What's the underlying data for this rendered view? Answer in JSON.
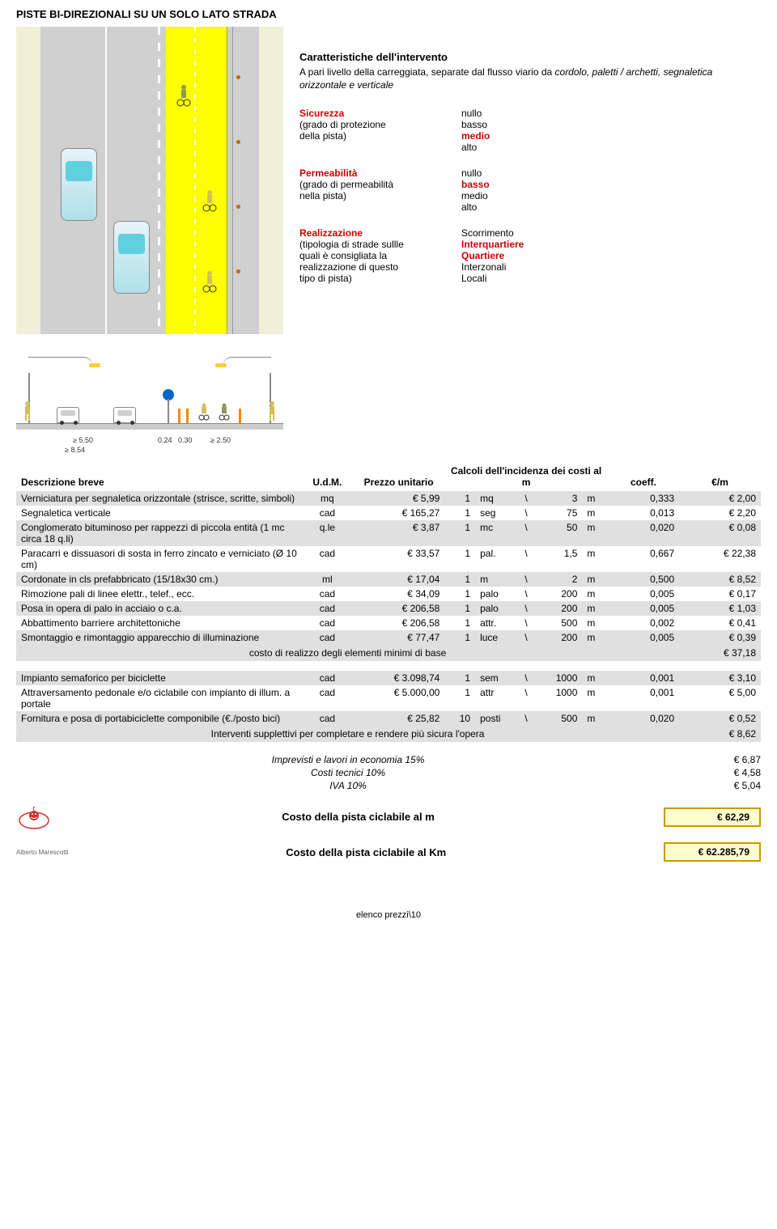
{
  "title": "PISTE BI-DIREZIONALI SU UN SOLO LATO STRADA",
  "intervention": {
    "heading": "Caratteristiche dell'intervento",
    "text_plain": "A pari livello della carreggiata, separate dal flusso viario da ",
    "text_italic": "cordolo, paletti / archetti, segnaletica orizzontale e verticale"
  },
  "sicurezza": {
    "label": "Sicurezza",
    "sub1": "(grado di protezione",
    "sub2": "della pista)",
    "opts": [
      "nullo",
      "basso",
      "medio",
      "alto"
    ],
    "selected": 2
  },
  "permeabilita": {
    "label": "Permeabilità",
    "sub1": "(grado di permeabilità",
    "sub2": "nella pista)",
    "opts": [
      "nullo",
      "basso",
      "medio",
      "alto"
    ],
    "selected": 1
  },
  "realizzazione": {
    "label": "Realizzazione",
    "sub1": "(tipologia di strade sullle",
    "sub2": "quali è consigliata  la",
    "sub3": "realizzazione di questo",
    "sub4": "tipo di pista)",
    "opts": [
      "Scorrimento",
      "Interquartiere",
      "Quartiere",
      "Interzonali",
      "Locali"
    ],
    "selected": [
      1,
      2
    ]
  },
  "dims": {
    "d1": "≥ 5.50",
    "d2": "0.24",
    "d3": "0.30",
    "d4": "≥ 2.50",
    "total": "≥ 8.54"
  },
  "table": {
    "headers": {
      "desc": "Descrizione breve",
      "udm": "U.d.M.",
      "prezzo": "Prezzo unitario",
      "calc": "Calcoli dell'incidenza dei costi al m",
      "coeff": "coeff.",
      "eurm": "€/m"
    },
    "rows": [
      {
        "shaded": true,
        "desc": "Verniciatura per segnaletica orizzontale (strisce, scritte, simboli)",
        "udm": "mq",
        "prezzo": "€ 5,99",
        "n1": "1",
        "u1": "mq",
        "sep": "\\",
        "n2": "3",
        "u2": "m",
        "coeff": "0,333",
        "eurm": "€ 2,00"
      },
      {
        "shaded": false,
        "desc": "Segnaletica verticale",
        "udm": "cad",
        "prezzo": "€ 165,27",
        "n1": "1",
        "u1": "seg",
        "sep": "\\",
        "n2": "75",
        "u2": "m",
        "coeff": "0,013",
        "eurm": "€ 2,20"
      },
      {
        "shaded": true,
        "desc": "Conglomerato bituminoso per rappezzi di piccola entità  (1 mc  circa 18 q.li)",
        "udm": "q.le",
        "prezzo": "€ 3,87",
        "n1": "1",
        "u1": "mc",
        "sep": "\\",
        "n2": "50",
        "u2": "m",
        "coeff": "0,020",
        "eurm": "€ 0,08"
      },
      {
        "shaded": false,
        "desc": "Paracarri e dissuasori di sosta in ferro zincato e verniciato (Ø 10 cm)",
        "udm": "cad",
        "prezzo": "€ 33,57",
        "n1": "1",
        "u1": "pal.",
        "sep": "\\",
        "n2": "1,5",
        "u2": "m",
        "coeff": "0,667",
        "eurm": "€ 22,38"
      },
      {
        "shaded": true,
        "desc": "Cordonate in cls prefabbricato (15/18x30 cm.)",
        "udm": "ml",
        "prezzo": "€ 17,04",
        "n1": "1",
        "u1": "m",
        "sep": "\\",
        "n2": "2",
        "u2": "m",
        "coeff": "0,500",
        "eurm": "€ 8,52"
      },
      {
        "shaded": false,
        "desc": "Rimozione pali di linee elettr., telef., ecc.",
        "udm": "cad",
        "prezzo": "€ 34,09",
        "n1": "1",
        "u1": "palo",
        "sep": "\\",
        "n2": "200",
        "u2": "m",
        "coeff": "0,005",
        "eurm": "€ 0,17"
      },
      {
        "shaded": true,
        "desc": "Posa in opera di palo in acciaio o c.a.",
        "udm": "cad",
        "prezzo": "€ 206,58",
        "n1": "1",
        "u1": "palo",
        "sep": "\\",
        "n2": "200",
        "u2": "m",
        "coeff": "0,005",
        "eurm": "€ 1,03"
      },
      {
        "shaded": false,
        "desc": "Abbattimento barriere architettoniche",
        "udm": "cad",
        "prezzo": "€ 206,58",
        "n1": "1",
        "u1": "attr.",
        "sep": "\\",
        "n2": "500",
        "u2": "m",
        "coeff": "0,002",
        "eurm": "€ 0,41"
      },
      {
        "shaded": true,
        "desc": "Smontaggio e rimontaggio apparecchio di illuminazione",
        "udm": "cad",
        "prezzo": "€ 77,47",
        "n1": "1",
        "u1": "luce",
        "sep": "\\",
        "n2": "200",
        "u2": "m",
        "coeff": "0,005",
        "eurm": "€ 0,39"
      }
    ],
    "subtotal1": {
      "label": "costo di realizzo degli elementi minimi di base",
      "val": "€ 37,18"
    },
    "rows2": [
      {
        "shaded": true,
        "desc": "Impianto semaforico per biciclette",
        "udm": "cad",
        "prezzo": "€ 3.098,74",
        "n1": "1",
        "u1": "sem",
        "sep": "\\",
        "n2": "1000",
        "u2": "m",
        "coeff": "0,001",
        "eurm": "€ 3,10"
      },
      {
        "shaded": false,
        "desc": "Attraversamento pedonale e/o ciclabile con impianto di illum. a portale",
        "udm": "cad",
        "prezzo": "€ 5.000,00",
        "n1": "1",
        "u1": "attr",
        "sep": "\\",
        "n2": "1000",
        "u2": "m",
        "coeff": "0,001",
        "eurm": "€ 5,00"
      },
      {
        "shaded": true,
        "desc": "Fornitura e posa di portabiciclette componibile (€./posto bici)",
        "udm": "cad",
        "prezzo": "€ 25,82",
        "n1": "10",
        "u1": "posti",
        "sep": "\\",
        "n2": "500",
        "u2": "m",
        "coeff": "0,020",
        "eurm": "€ 0,52"
      }
    ],
    "subtotal2": {
      "label": "Interventi supplettivi per completare e rendere più sicura l'opera",
      "val": "€ 8,62"
    }
  },
  "summary": {
    "line1": {
      "lbl": "Imprevisti e lavori in economia 15%",
      "val": "€ 6,87"
    },
    "line2": {
      "lbl": "Costi tecnici 10%",
      "val": "€ 4,58"
    },
    "line3": {
      "lbl": "IVA 10%",
      "val": "€ 5,04"
    }
  },
  "totals": {
    "perM": {
      "lbl": "Costo della pista ciclabile al m",
      "val": "€ 62,29"
    },
    "perKm": {
      "lbl": "Costo della pista ciclabile al Km",
      "val": "€ 62.285,79"
    }
  },
  "author": "Alberto Marescotti",
  "footer": "elenco prezzi\\10",
  "colors": {
    "red": "#cc0000",
    "shade": "#e0e0e0",
    "box_border": "#cc9900",
    "box_bg": "#ffffcc",
    "bike_lane": "#ffff00"
  }
}
